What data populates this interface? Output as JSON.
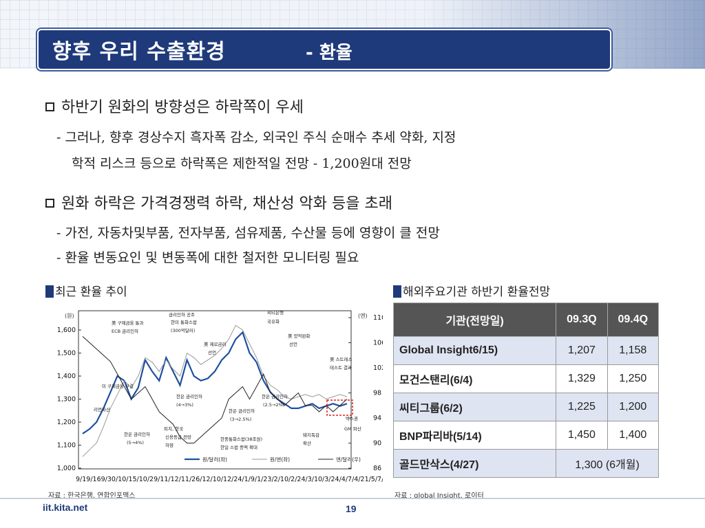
{
  "slide": {
    "title": "향후 우리 수출환경",
    "subtitle": "- 환율",
    "page": "19",
    "footer": "iit.kita.net"
  },
  "bullets": [
    {
      "text": "하반기 원화의 방향성은 하락쪽이 우세",
      "subs": [
        "-  그러나, 향후 경상수지 흑자폭 감소, 외국인 주식 순매수 추세 약화, 지정",
        "학적 리스크 등으로 하락폭은 제한적일 전망  - 1,200원대 전망"
      ]
    },
    {
      "text": "원화 하락은 가격경쟁력 하락, 채산성 악화 등을 초래",
      "subs": [
        "-  가전, 자동차및부품, 전자부품, 섬유제품, 수산물 등에 영향이 클 전망",
        "-  환율 변동요인 및 변동폭에 대한 철저한 모니터링 필요"
      ]
    }
  ],
  "left_section": {
    "label": "최근 환율 추이",
    "source": "자료 : 한국은행, 연합인포맥스"
  },
  "right_section": {
    "label": "해외주요기관 하반기 환율전망",
    "source": "자료 : global Insight, 로이터"
  },
  "table": {
    "headers": [
      "기관(전망일)",
      "09.3Q",
      "09.4Q"
    ],
    "rows": [
      [
        "Global Insight6/15)",
        "1,207",
        "1,158"
      ],
      [
        "모건스탠리(6/4)",
        "1,329",
        "1,250"
      ],
      [
        "씨티그룹(6/2)",
        "1,225",
        "1,200"
      ],
      [
        "BNP파리바(5/14)",
        "1,450",
        "1,400"
      ],
      [
        "골드만삭스(4/27)",
        "1,300 (6개월)"
      ]
    ]
  },
  "chart_data": {
    "type": "line",
    "left_axis_unit": "(원)",
    "right_axis_unit": "(엔)",
    "left_ticks": [
      "1,600",
      "1,500",
      "1,400",
      "1,300",
      "1,200",
      "1,100",
      "1,000"
    ],
    "right_ticks": [
      "110",
      "106",
      "102",
      "98",
      "94",
      "90",
      "86"
    ],
    "ylim_left": [
      1000,
      1650
    ],
    "ylim_right": [
      86,
      111
    ],
    "x_ticks": [
      "9/19",
      "16/9",
      "30/10",
      "15/10",
      "29/11",
      "12/11",
      "26/12",
      "10/12",
      "24/1",
      "9/1",
      "23/2",
      "10/2",
      "24/3",
      "10/3",
      "24/4",
      "7/4",
      "21/5",
      "7/5",
      "21/6",
      "4/6",
      "18"
    ],
    "x_tick_line": "9/19/169/30/10/15/10/29/11/12/11/26/12/10/12/24/1/9/1/23/2/10/2/24/3/10/3/24/4/7/4/21/5/7/5/21/6/4/6/18",
    "series": [
      {
        "name": "원/달러(좌)",
        "color": "#1f4fa0",
        "values": [
          1150,
          1170,
          1200,
          1260,
          1330,
          1400,
          1380,
          1300,
          1350,
          1470,
          1420,
          1380,
          1480,
          1420,
          1360,
          1470,
          1400,
          1380,
          1390,
          1420,
          1470,
          1500,
          1560,
          1590,
          1500,
          1460,
          1380,
          1330,
          1300,
          1280,
          1260,
          1260,
          1270,
          1280,
          1260,
          1270,
          1280,
          1270,
          1280
        ]
      },
      {
        "name": "원/엔(좌)",
        "color": "#999999",
        "values": [
          1050,
          1080,
          1110,
          1180,
          1260,
          1320,
          1380,
          1350,
          1400,
          1480,
          1460,
          1420,
          1470,
          1430,
          1400,
          1500,
          1480,
          1450,
          1470,
          1490,
          1520,
          1560,
          1620,
          1600,
          1540,
          1480,
          1400,
          1360,
          1340,
          1310,
          1300,
          1310,
          1320,
          1310,
          1320,
          1300,
          1310,
          1320,
          1310
        ]
      },
      {
        "name": "엔/달러(우)",
        "color": "#222222",
        "values": [
          107,
          106,
          105,
          104,
          103,
          101,
          99,
          97,
          98,
          99,
          97,
          95,
          94,
          93,
          91,
          90,
          90,
          91,
          92,
          93,
          94,
          97,
          98,
          99,
          97,
          99,
          101,
          98,
          97,
          96,
          97,
          98,
          96,
          96,
          95,
          96,
          95,
          96,
          97
        ]
      }
    ],
    "annotations": [
      "美 구제금융 통과",
      "ECB 금리인하",
      "금리인하 공조",
      "한미 통화스왑",
      "(300억달러)",
      "씨티은행",
      "국유화",
      "美 양적완화",
      "선언",
      "美 제로금리",
      "선언",
      "美 스트레스",
      "테스트 결과",
      "미 구제금융 부결",
      "리먼파산",
      "한은 금리인하",
      "(4→3%)",
      "한은 금리인하",
      "(2.5→2%)",
      "한은 금리인하",
      "(3→2.5%)",
      "한은 금리인하",
      "(5→4%)",
      "피치, 한국",
      "신용등급 전망",
      "하향",
      "한중통화스왑(38조원)",
      "한일 스왑 증액 확대",
      "돼지독감",
      "확산",
      "GM 파산",
      "박스권"
    ],
    "grid": false
  }
}
